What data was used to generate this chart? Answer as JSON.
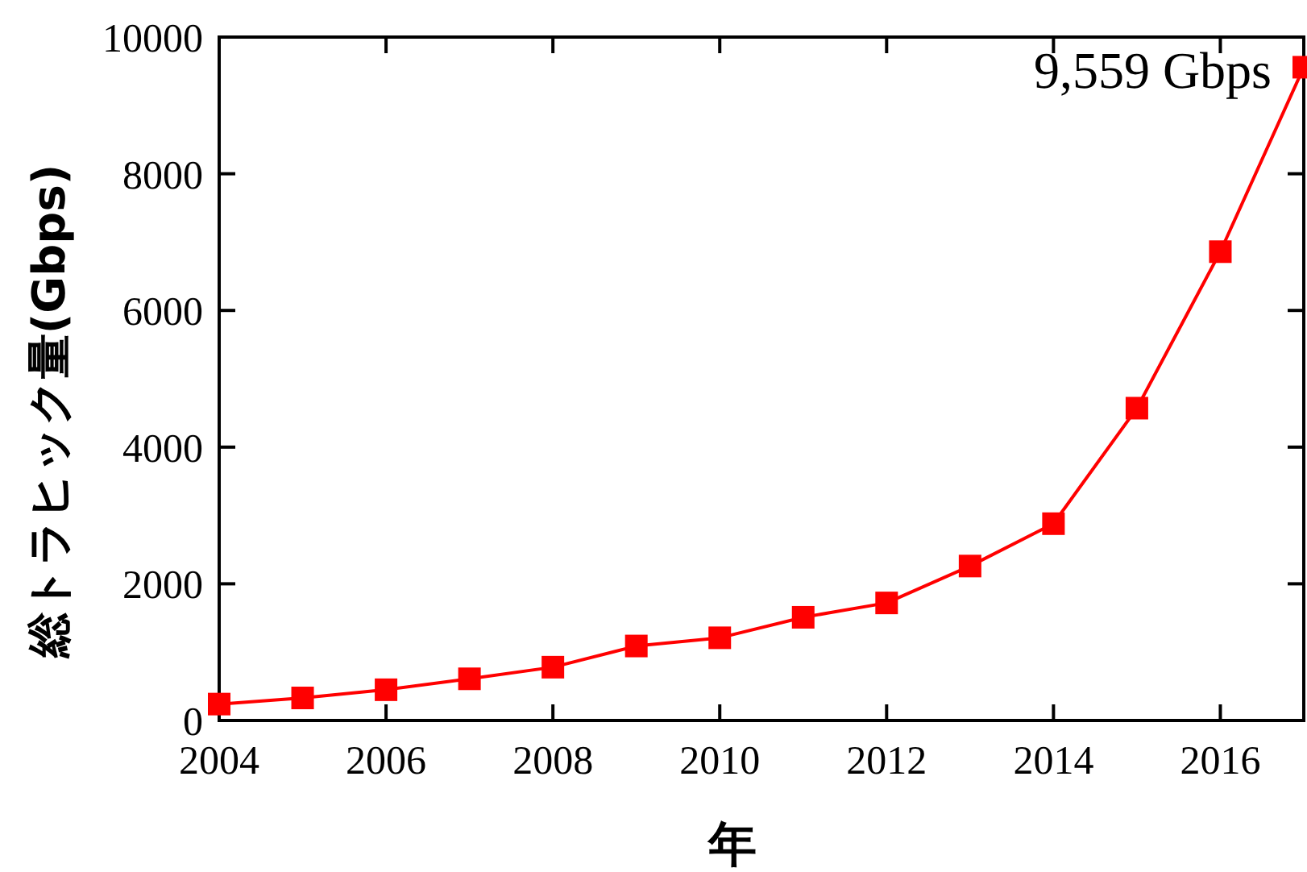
{
  "chart_data": {
    "type": "line",
    "xlabel": "年",
    "ylabel": "総トラヒック量(Gbps)",
    "x": [
      2004,
      2005,
      2006,
      2007,
      2008,
      2009,
      2010,
      2011,
      2012,
      2013,
      2014,
      2015,
      2016,
      2017
    ],
    "series": [
      {
        "color": "#ff0000",
        "values": [
          240,
          330,
          450,
          610,
          780,
          1090,
          1210,
          1510,
          1720,
          2260,
          2880,
          4570,
          6860,
          9559
        ]
      }
    ],
    "xlim": [
      2004,
      2017
    ],
    "xticks": [
      2004,
      2006,
      2008,
      2010,
      2012,
      2014,
      2016
    ],
    "ylim": [
      0,
      10000
    ],
    "yticks": [
      0,
      2000,
      4000,
      6000,
      8000,
      10000
    ],
    "marker": "square",
    "line_style": "solid",
    "grid": false,
    "annotations": [
      {
        "text": "9,559 Gbps",
        "x": 2017,
        "y": 9559
      }
    ]
  }
}
